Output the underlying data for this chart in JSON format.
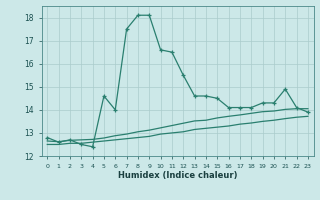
{
  "xlabel": "Humidex (Indice chaleur)",
  "background_color": "#cce8e8",
  "grid_color": "#aacccc",
  "line_color": "#2a7f6f",
  "xlim": [
    -0.5,
    23.5
  ],
  "ylim": [
    12,
    18.5
  ],
  "yticks": [
    12,
    13,
    14,
    15,
    16,
    17,
    18
  ],
  "xticks": [
    0,
    1,
    2,
    3,
    4,
    5,
    6,
    7,
    8,
    9,
    10,
    11,
    12,
    13,
    14,
    15,
    16,
    17,
    18,
    19,
    20,
    21,
    22,
    23
  ],
  "series1_x": [
    0,
    1,
    2,
    3,
    4,
    5,
    6,
    7,
    8,
    9,
    10,
    11,
    12,
    13,
    14,
    15,
    16,
    17,
    18,
    19,
    20,
    21,
    22,
    23
  ],
  "series1_y": [
    12.8,
    12.6,
    12.7,
    12.5,
    12.4,
    14.6,
    14.0,
    17.5,
    18.1,
    18.1,
    16.6,
    16.5,
    15.5,
    14.6,
    14.6,
    14.5,
    14.1,
    14.1,
    14.1,
    14.3,
    14.3,
    14.9,
    14.1,
    13.9
  ],
  "series2_x": [
    0,
    1,
    2,
    3,
    4,
    5,
    6,
    7,
    8,
    9,
    10,
    11,
    12,
    13,
    14,
    15,
    16,
    17,
    18,
    19,
    20,
    21,
    22,
    23
  ],
  "series2_y": [
    12.5,
    12.5,
    12.55,
    12.55,
    12.6,
    12.65,
    12.7,
    12.75,
    12.8,
    12.85,
    12.95,
    13.0,
    13.05,
    13.15,
    13.2,
    13.25,
    13.3,
    13.38,
    13.43,
    13.5,
    13.55,
    13.62,
    13.68,
    13.72
  ],
  "series3_x": [
    0,
    1,
    2,
    3,
    4,
    5,
    6,
    7,
    8,
    9,
    10,
    11,
    12,
    13,
    14,
    15,
    16,
    17,
    18,
    19,
    20,
    21,
    22,
    23
  ],
  "series3_y": [
    12.65,
    12.62,
    12.68,
    12.7,
    12.72,
    12.78,
    12.88,
    12.95,
    13.05,
    13.12,
    13.22,
    13.32,
    13.42,
    13.52,
    13.55,
    13.65,
    13.72,
    13.78,
    13.85,
    13.92,
    13.95,
    14.02,
    14.05,
    14.05
  ]
}
